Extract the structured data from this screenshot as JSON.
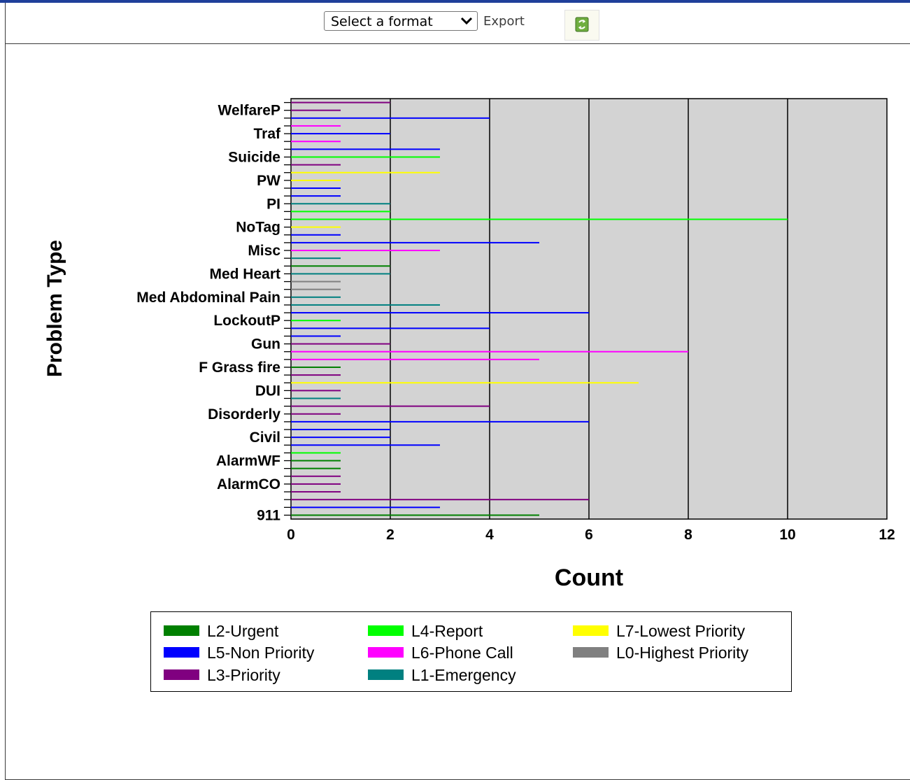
{
  "toolbar": {
    "format_select_value": "Select a format",
    "export_label": "Export",
    "refresh_icon": "refresh-icon",
    "chevron_icon": "chevron-down-icon"
  },
  "chart_data": {
    "type": "bar",
    "orientation": "horizontal",
    "xlabel": "Count",
    "ylabel": "Problem Type",
    "xlim": [
      0,
      12
    ],
    "xticks": [
      0,
      2,
      4,
      6,
      8,
      10,
      12
    ],
    "grid": true,
    "plot_background": "#d3d3d3",
    "legend_position": "bottom",
    "visible_category_labels": [
      "WelfareP",
      "Traf",
      "Suicide",
      "PW",
      "PI",
      "NoTag",
      "Misc",
      "Med Heart",
      "Med Abdominal Pain",
      "LockoutP",
      "Gun",
      "F Grass fire",
      "DUI",
      "Disorderly",
      "Civil",
      "AlarmWF",
      "AlarmCO",
      "911"
    ],
    "series": [
      {
        "name": "L2-Urgent",
        "color": "#008000"
      },
      {
        "name": "L5-Non Priority",
        "color": "#0000ff"
      },
      {
        "name": "L3-Priority",
        "color": "#800080"
      },
      {
        "name": "L4-Report",
        "color": "#00ff00"
      },
      {
        "name": "L6-Phone Call",
        "color": "#ff00ff"
      },
      {
        "name": "L1-Emergency",
        "color": "#008080"
      },
      {
        "name": "L7-Lowest Priority",
        "color": "#ffff00"
      },
      {
        "name": "L0-Highest Priority",
        "color": "#808080"
      }
    ],
    "bars_bottom_to_top": [
      {
        "label": "911",
        "series": "L2-Urgent",
        "value": 5
      },
      {
        "label": "",
        "series": "L5-Non Priority",
        "value": 3
      },
      {
        "label": "",
        "series": "L3-Priority",
        "value": 6
      },
      {
        "label": "",
        "series": "L3-Priority",
        "value": 1
      },
      {
        "label": "AlarmCO",
        "series": "L3-Priority",
        "value": 1
      },
      {
        "label": "",
        "series": "L3-Priority",
        "value": 1
      },
      {
        "label": "",
        "series": "L2-Urgent",
        "value": 1
      },
      {
        "label": "AlarmWF",
        "series": "L2-Urgent",
        "value": 1
      },
      {
        "label": "",
        "series": "L4-Report",
        "value": 1
      },
      {
        "label": "",
        "series": "L5-Non Priority",
        "value": 3
      },
      {
        "label": "Civil",
        "series": "L5-Non Priority",
        "value": 2
      },
      {
        "label": "",
        "series": "L5-Non Priority",
        "value": 2
      },
      {
        "label": "",
        "series": "L5-Non Priority",
        "value": 6
      },
      {
        "label": "Disorderly",
        "series": "L3-Priority",
        "value": 1
      },
      {
        "label": "",
        "series": "L3-Priority",
        "value": 4
      },
      {
        "label": "",
        "series": "L1-Emergency",
        "value": 1
      },
      {
        "label": "DUI",
        "series": "L3-Priority",
        "value": 1
      },
      {
        "label": "",
        "series": "L7-Lowest Priority",
        "value": 7
      },
      {
        "label": "",
        "series": "L3-Priority",
        "value": 1
      },
      {
        "label": "F Grass fire",
        "series": "L2-Urgent",
        "value": 1
      },
      {
        "label": "",
        "series": "L6-Phone Call",
        "value": 5
      },
      {
        "label": "",
        "series": "L6-Phone Call",
        "value": 8
      },
      {
        "label": "Gun",
        "series": "L3-Priority",
        "value": 2
      },
      {
        "label": "",
        "series": "L5-Non Priority",
        "value": 1
      },
      {
        "label": "",
        "series": "L5-Non Priority",
        "value": 4
      },
      {
        "label": "LockoutP",
        "series": "L4-Report",
        "value": 1
      },
      {
        "label": "",
        "series": "L5-Non Priority",
        "value": 6
      },
      {
        "label": "",
        "series": "L1-Emergency",
        "value": 3
      },
      {
        "label": "Med Abdominal Pain",
        "series": "L1-Emergency",
        "value": 1
      },
      {
        "label": "",
        "series": "L0-Highest Priority",
        "value": 1
      },
      {
        "label": "",
        "series": "L0-Highest Priority",
        "value": 1
      },
      {
        "label": "Med Heart",
        "series": "L1-Emergency",
        "value": 2
      },
      {
        "label": "",
        "series": "L2-Urgent",
        "value": 2
      },
      {
        "label": "",
        "series": "L1-Emergency",
        "value": 1
      },
      {
        "label": "Misc",
        "series": "L6-Phone Call",
        "value": 3
      },
      {
        "label": "",
        "series": "L5-Non Priority",
        "value": 5
      },
      {
        "label": "",
        "series": "L5-Non Priority",
        "value": 1
      },
      {
        "label": "NoTag",
        "series": "L7-Lowest Priority",
        "value": 1
      },
      {
        "label": "",
        "series": "L4-Report",
        "value": 10
      },
      {
        "label": "",
        "series": "L4-Report",
        "value": 2
      },
      {
        "label": "PI",
        "series": "L1-Emergency",
        "value": 2
      },
      {
        "label": "",
        "series": "L5-Non Priority",
        "value": 1
      },
      {
        "label": "",
        "series": "L5-Non Priority",
        "value": 1
      },
      {
        "label": "PW",
        "series": "L7-Lowest Priority",
        "value": 1
      },
      {
        "label": "",
        "series": "L7-Lowest Priority",
        "value": 3
      },
      {
        "label": "",
        "series": "L3-Priority",
        "value": 1
      },
      {
        "label": "Suicide",
        "series": "L4-Report",
        "value": 3
      },
      {
        "label": "",
        "series": "L5-Non Priority",
        "value": 3
      },
      {
        "label": "",
        "series": "L6-Phone Call",
        "value": 1
      },
      {
        "label": "Traf",
        "series": "L5-Non Priority",
        "value": 2
      },
      {
        "label": "",
        "series": "L6-Phone Call",
        "value": 1
      },
      {
        "label": "",
        "series": "L5-Non Priority",
        "value": 4
      },
      {
        "label": "WelfareP",
        "series": "L3-Priority",
        "value": 1
      },
      {
        "label": "",
        "series": "L3-Priority",
        "value": 2
      }
    ]
  }
}
